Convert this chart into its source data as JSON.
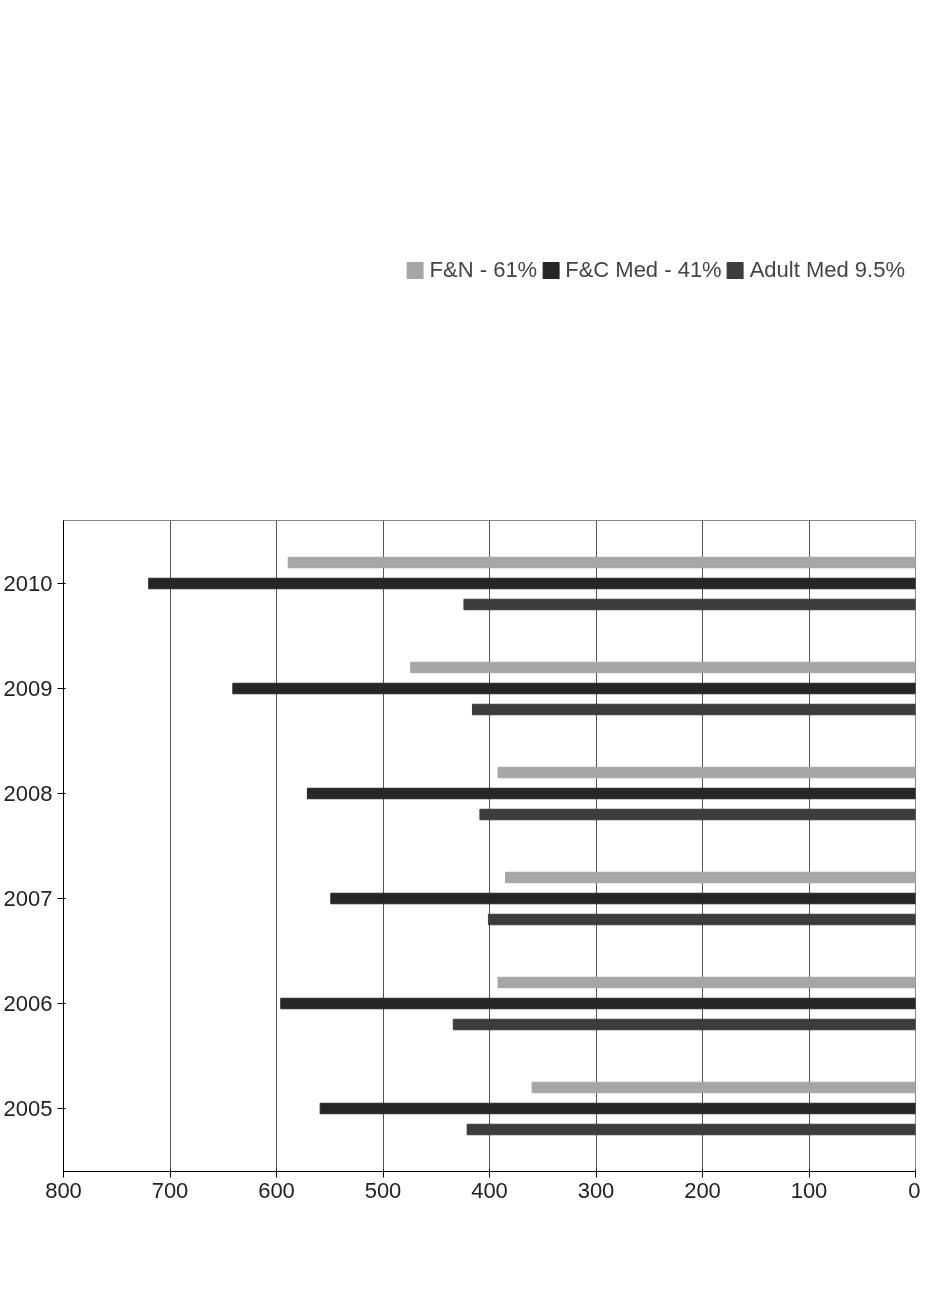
{
  "chart_data": {
    "type": "bar",
    "orientation": "horizontal",
    "categories": [
      "2010",
      "2009",
      "2008",
      "2007",
      "2006",
      "2005"
    ],
    "series": [
      {
        "name": "F&N - 61%",
        "color": "#a6a6a6",
        "values": [
          589,
          474,
          392,
          385,
          392,
          360
        ]
      },
      {
        "name": "F&C Med - 41%",
        "color": "#262626",
        "values": [
          720,
          641,
          571,
          549,
          596,
          559
        ]
      },
      {
        "name": "Adult Med 9.5%",
        "color": "#3c3c3c",
        "values": [
          424,
          416,
          409,
          401,
          434,
          421
        ]
      }
    ],
    "xlim": [
      800,
      0
    ],
    "xticks": [
      800,
      700,
      600,
      500,
      400,
      300,
      200,
      100,
      0
    ],
    "grid": "x",
    "legend": "top"
  }
}
